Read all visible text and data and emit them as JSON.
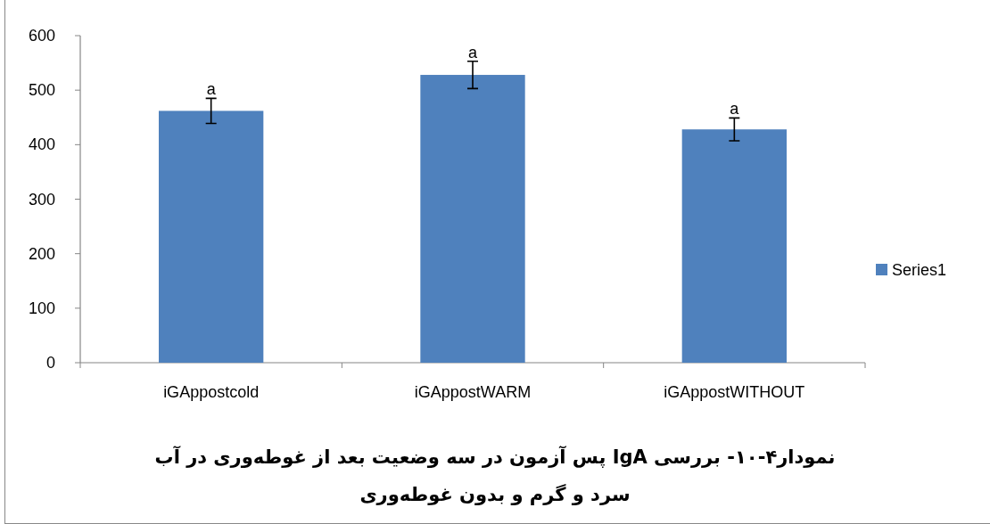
{
  "chart_data": {
    "type": "bar",
    "title": "نمودار۴-۱۰- بررسی IgA پس آزمون در سه وضعیت بعد از غوطه‌وری در آب سرد و گرم و بدون غوطه‌وری",
    "categories": [
      "iGAppostcold",
      "iGAppostWARM",
      "iGAppostWITHOUT"
    ],
    "series": [
      {
        "name": "Series1",
        "color": "#4f81bd",
        "values": [
          462,
          528,
          428
        ],
        "errors": [
          23,
          25,
          21
        ]
      }
    ],
    "annotations": [
      {
        "text": "a",
        "x": "iGAppostcold",
        "y": 485
      },
      {
        "text": "a",
        "x": "iGAppostWARM",
        "y": 553
      },
      {
        "text": "a",
        "x": "iGAppostWITHOUT",
        "y": 449
      }
    ],
    "ylim": [
      0,
      600
    ],
    "yticks": [
      0,
      100,
      200,
      300,
      400,
      500,
      600
    ],
    "grid": false,
    "legend": "right"
  }
}
